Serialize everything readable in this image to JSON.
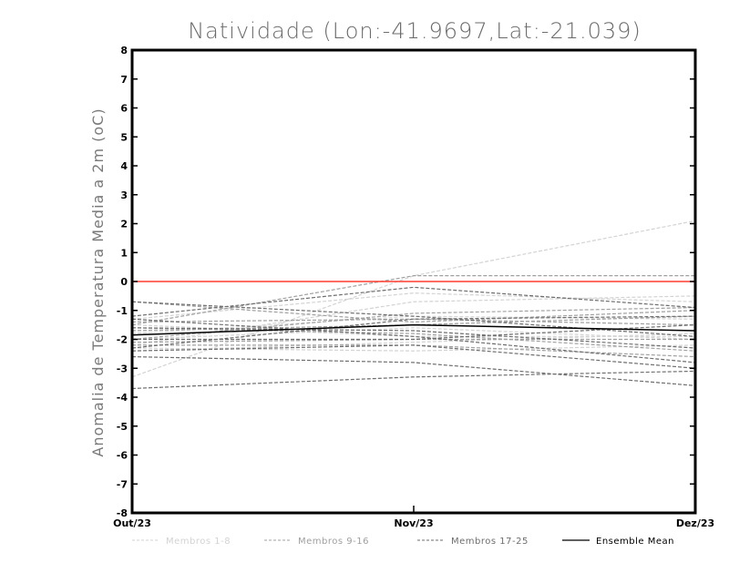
{
  "chart_data": {
    "type": "line",
    "title": "Natividade (Lon:-41.9697,Lat:-21.039)",
    "ylabel": "Anomalia de Temperatura Media a 2m (oC)",
    "xlabel": "",
    "categories": [
      "Out/23",
      "Nov/23",
      "Dez/23"
    ],
    "ylim": [
      -8,
      8
    ],
    "yticks": [
      "8",
      "7",
      "6",
      "5",
      "4",
      "3",
      "2",
      "1",
      "0",
      "-1",
      "-2",
      "-3",
      "-4",
      "-5",
      "-6",
      "-7",
      "-8"
    ],
    "zero_line_color": "#ff3b30",
    "legend_position": "bottom",
    "legend": [
      {
        "name": "Membros 1-8",
        "color": "#d3d3d3",
        "dashed": true
      },
      {
        "name": "Membros 9-16",
        "color": "#a0a0a0",
        "dashed": true
      },
      {
        "name": "Membros 17-25",
        "color": "#6e6e6e",
        "dashed": true
      },
      {
        "name": "Ensemble Mean",
        "color": "#000000",
        "dashed": false
      }
    ],
    "series": [
      {
        "group": 0,
        "values": [
          -3.3,
          0.2,
          2.1
        ]
      },
      {
        "group": 0,
        "values": [
          -2.2,
          -0.7,
          -0.5
        ]
      },
      {
        "group": 0,
        "values": [
          -1.5,
          -1.9,
          -1.9
        ]
      },
      {
        "group": 0,
        "values": [
          -2.3,
          -2.4,
          -2.2
        ]
      },
      {
        "group": 0,
        "values": [
          -1.3,
          -0.4,
          -0.7
        ]
      },
      {
        "group": 0,
        "values": [
          -2.4,
          -2.1,
          -1.8
        ]
      },
      {
        "group": 0,
        "values": [
          -1.8,
          -1.2,
          -1.3
        ]
      },
      {
        "group": 0,
        "values": [
          -2.0,
          -1.6,
          -2.0
        ]
      },
      {
        "group": 1,
        "values": [
          -1.5,
          0.2,
          0.2
        ]
      },
      {
        "group": 1,
        "values": [
          -2.0,
          -1.1,
          -0.9
        ]
      },
      {
        "group": 1,
        "values": [
          -1.6,
          -1.8,
          -2.4
        ]
      },
      {
        "group": 1,
        "values": [
          -1.4,
          -1.3,
          -1.5
        ]
      },
      {
        "group": 1,
        "values": [
          -2.1,
          -2.0,
          -2.0
        ]
      },
      {
        "group": 1,
        "values": [
          -1.7,
          -1.5,
          -1.2
        ]
      },
      {
        "group": 1,
        "values": [
          -2.2,
          -2.2,
          -2.6
        ]
      },
      {
        "group": 1,
        "values": [
          -0.7,
          -1.4,
          -1.0
        ]
      },
      {
        "group": 2,
        "values": [
          -0.7,
          -1.2,
          -1.9
        ]
      },
      {
        "group": 2,
        "values": [
          -1.2,
          -0.2,
          -0.9
        ]
      },
      {
        "group": 2,
        "values": [
          -3.7,
          -3.3,
          -3.1
        ]
      },
      {
        "group": 2,
        "values": [
          -2.4,
          -2.2,
          -3.0
        ]
      },
      {
        "group": 2,
        "values": [
          -1.3,
          -1.9,
          -2.8
        ]
      },
      {
        "group": 2,
        "values": [
          -2.6,
          -2.8,
          -3.6
        ]
      },
      {
        "group": 2,
        "values": [
          -1.6,
          -1.7,
          -2.3
        ]
      },
      {
        "group": 2,
        "values": [
          -2.0,
          -2.0,
          -1.5
        ]
      },
      {
        "group": 2,
        "values": [
          -2.3,
          -1.3,
          -1.2
        ]
      },
      {
        "group": 3,
        "values": [
          -1.85,
          -1.5,
          -1.7
        ]
      }
    ]
  }
}
